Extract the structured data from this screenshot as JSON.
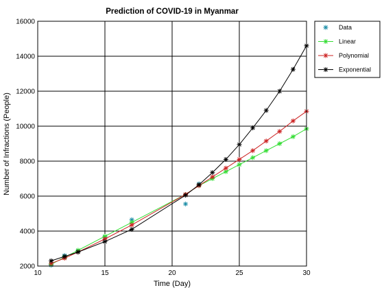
{
  "chart_data": {
    "type": "line",
    "title": "Prediction of COVID-19 in Myanmar",
    "xlabel": "Time (Day)",
    "ylabel": "Number of Infractions (People)",
    "xlim": [
      10,
      30
    ],
    "ylim": [
      2000,
      16000
    ],
    "xticks": [
      10,
      15,
      20,
      25,
      30
    ],
    "yticks": [
      2000,
      4000,
      6000,
      8000,
      10000,
      12000,
      14000,
      16000
    ],
    "grid": true,
    "legend_position": "outside-right-top",
    "series": [
      {
        "name": "Data",
        "color": "#1f8fa8",
        "line": false,
        "x": [
          11,
          12,
          13,
          15,
          17,
          21,
          22
        ],
        "y": [
          2050,
          2600,
          2850,
          3650,
          4650,
          5550,
          6700
        ]
      },
      {
        "name": "Linear",
        "color": "#33dd33",
        "line": true,
        "x": [
          11,
          12,
          13,
          15,
          17,
          21,
          22,
          23,
          24,
          25,
          26,
          27,
          28,
          29,
          30
        ],
        "y": [
          2100,
          2500,
          2900,
          3700,
          4500,
          6100,
          6600,
          7000,
          7400,
          7800,
          8200,
          8600,
          9000,
          9400,
          9850
        ]
      },
      {
        "name": "Polynomial",
        "color": "#cc2222",
        "line": true,
        "x": [
          11,
          12,
          13,
          15,
          17,
          21,
          22,
          23,
          24,
          25,
          26,
          27,
          28,
          29,
          30
        ],
        "y": [
          2150,
          2450,
          2800,
          3550,
          4350,
          6100,
          6600,
          7100,
          7600,
          8100,
          8600,
          9150,
          9700,
          10300,
          10850
        ]
      },
      {
        "name": "Exponential",
        "color": "#000000",
        "line": true,
        "x": [
          11,
          12,
          13,
          15,
          17,
          21,
          22,
          23,
          24,
          25,
          26,
          27,
          28,
          29,
          30
        ],
        "y": [
          2300,
          2550,
          2800,
          3400,
          4100,
          6050,
          6650,
          7350,
          8100,
          8950,
          9900,
          10900,
          12000,
          13250,
          14600
        ]
      }
    ]
  }
}
